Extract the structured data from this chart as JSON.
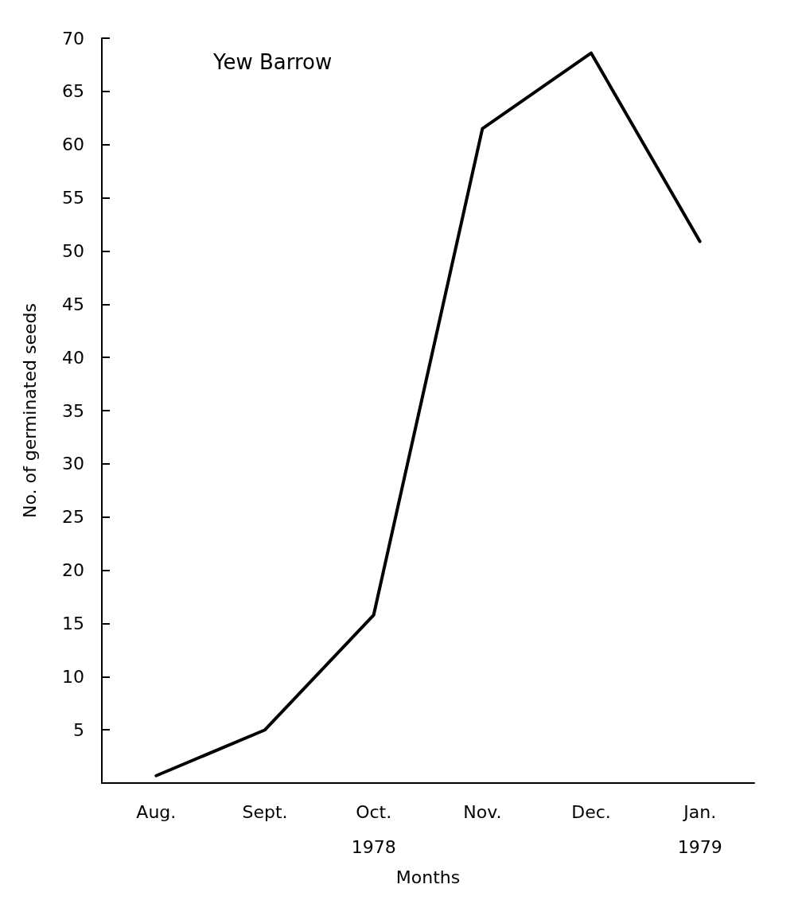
{
  "chart_data": {
    "type": "line",
    "title": "Yew Barrow",
    "xlabel": "Months",
    "ylabel": "No. of germinated seeds",
    "categories": [
      "Aug.",
      "Sept.",
      "Oct.\n1978",
      "Nov.",
      "Dec.",
      "Jan.\n1979"
    ],
    "series": [
      {
        "color": "#000000",
        "values": [
          0.7,
          5,
          15.8,
          61.5,
          68.6,
          50.9
        ]
      }
    ],
    "ylim": [
      0,
      70
    ],
    "yticks": [
      5,
      10,
      15,
      20,
      25,
      30,
      35,
      40,
      45,
      50,
      55,
      60,
      65,
      70
    ],
    "grid": false,
    "marker": "none",
    "line_style": "solid"
  }
}
